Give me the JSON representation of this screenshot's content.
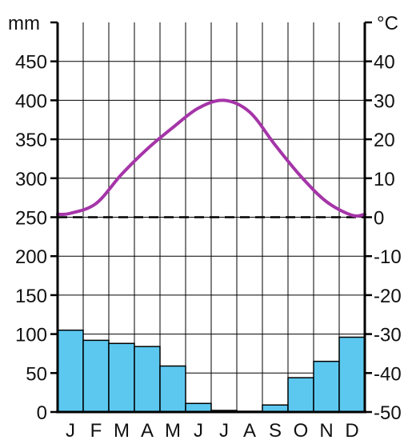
{
  "chart_data": {
    "type": "bar+line",
    "categories": [
      "J",
      "F",
      "M",
      "A",
      "M",
      "J",
      "J",
      "A",
      "S",
      "O",
      "N",
      "D"
    ],
    "series": [
      {
        "type": "bar",
        "axis": "left",
        "values": [
          105,
          92,
          88,
          84,
          59,
          11,
          2,
          1,
          9,
          44,
          65,
          96
        ]
      },
      {
        "type": "line",
        "axis": "right",
        "values": [
          1,
          3.5,
          11,
          17.5,
          23,
          28,
          30,
          27,
          18.5,
          10.5,
          4,
          0.5
        ]
      }
    ],
    "left_axis": {
      "unit": "mm",
      "range": [
        0,
        500
      ],
      "ticks": [
        "0",
        "50",
        "100",
        "150",
        "200",
        "250",
        "300",
        "350",
        "400",
        "450"
      ]
    },
    "right_axis": {
      "unit": "°C",
      "range": [
        -50,
        50
      ],
      "ticks": [
        "-50",
        "-40",
        "-30",
        "-20",
        "-10",
        "0",
        "10",
        "20",
        "30",
        "40"
      ]
    },
    "reference_line": {
      "axis": "right",
      "value": 0,
      "style": "dashed"
    },
    "grid": true,
    "colors": {
      "bars": "#5cc8f0",
      "line": "#a535a8",
      "grid": "#000000"
    }
  }
}
